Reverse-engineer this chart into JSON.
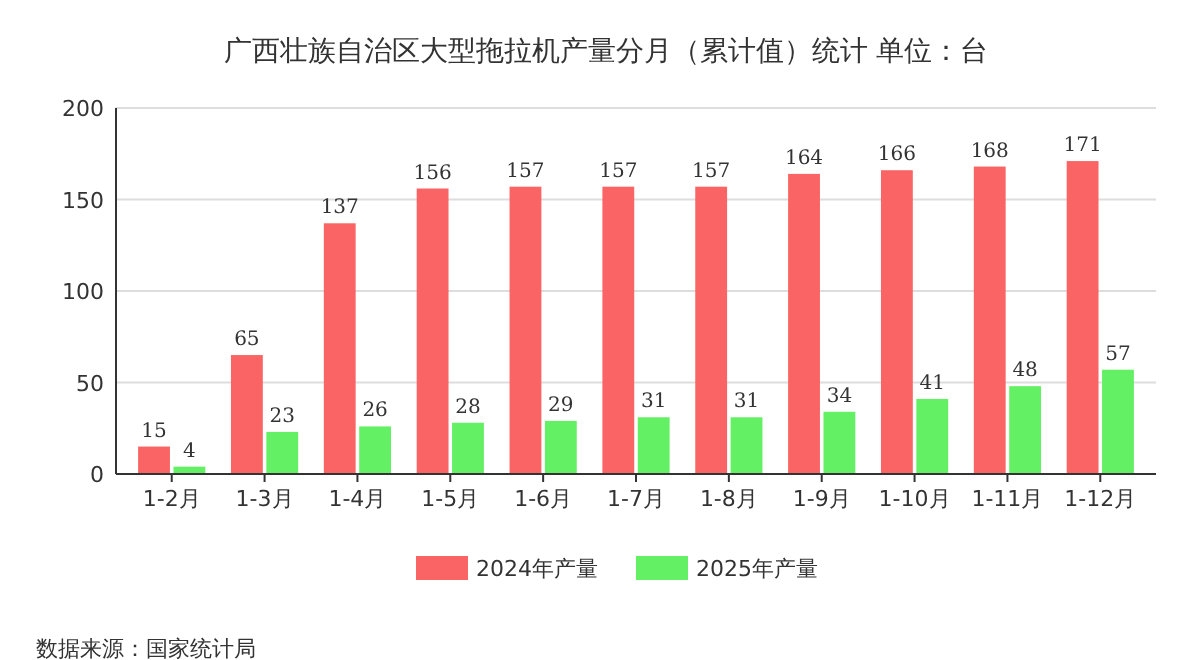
{
  "chart_data": {
    "type": "bar",
    "title": "广西壮族自治区大型拖拉机产量分月（累计值）统计  单位：台",
    "categories": [
      "1-2月",
      "1-3月",
      "1-4月",
      "1-5月",
      "1-6月",
      "1-7月",
      "1-8月",
      "1-9月",
      "1-10月",
      "1-11月",
      "1-12月"
    ],
    "series": [
      {
        "name": "2024年产量",
        "color": "#fa6464",
        "values": [
          15,
          65,
          137,
          156,
          157,
          157,
          157,
          164,
          166,
          168,
          171
        ]
      },
      {
        "name": "2025年产量",
        "color": "#64f064",
        "values": [
          4,
          23,
          26,
          28,
          29,
          31,
          31,
          34,
          41,
          48,
          57
        ]
      }
    ],
    "ylim": [
      0,
      200
    ],
    "yticks": [
      0,
      50,
      100,
      150,
      200
    ],
    "grid": "y",
    "legend": "bottom",
    "data_labels": true,
    "annotations": [
      "数据来源：国家统计局"
    ]
  }
}
